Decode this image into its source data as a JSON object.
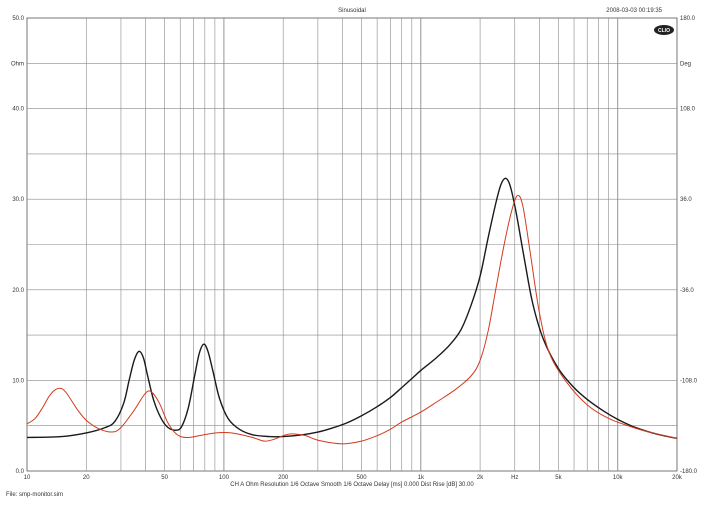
{
  "header": {
    "title": "Sinusoidal",
    "timestamp": "2008-03-03 00:19:35",
    "logo_text": "CLIO"
  },
  "footer": {
    "settings": "CH A   Ohm   Resolution 1/6 Octave   Smooth 1/6 Octave   Delay [ms] 0.000   Dist Rise [dB] 30.00",
    "file": "File: smp-monitor.sim"
  },
  "chart_data": {
    "type": "line",
    "x_scale": "log",
    "xlim": [
      10,
      20000
    ],
    "ylim": [
      0,
      50
    ],
    "y2lim": [
      -180,
      180
    ],
    "ylabel": "Ohm",
    "y2label": "Deg",
    "grid": true,
    "x_ticks": [
      {
        "v": 10,
        "label": "10"
      },
      {
        "v": 20,
        "label": "20"
      },
      {
        "v": 50,
        "label": "50"
      },
      {
        "v": 100,
        "label": "100"
      },
      {
        "v": 200,
        "label": "200"
      },
      {
        "v": 500,
        "label": "500"
      },
      {
        "v": 1000,
        "label": "1k"
      },
      {
        "v": 2000,
        "label": "2k"
      },
      {
        "v": 3000,
        "label": "Hz"
      },
      {
        "v": 5000,
        "label": "5k"
      },
      {
        "v": 10000,
        "label": "10k"
      },
      {
        "v": 20000,
        "label": "20k"
      }
    ],
    "y_ticks": [
      {
        "v": 50,
        "label": "50.0"
      },
      {
        "v": 45,
        "label": "Ohm"
      },
      {
        "v": 40,
        "label": "40.0"
      },
      {
        "v": 30,
        "label": "30.0"
      },
      {
        "v": 20,
        "label": "20.0"
      },
      {
        "v": 10,
        "label": "10.0"
      },
      {
        "v": 0,
        "label": "0.0"
      }
    ],
    "y2_ticks": [
      {
        "v": 50,
        "label": "180.0"
      },
      {
        "v": 45,
        "label": "Deg"
      },
      {
        "v": 40,
        "label": "108.0"
      },
      {
        "v": 30,
        "label": "36.0"
      },
      {
        "v": 20,
        "label": "-36.0"
      },
      {
        "v": 10,
        "label": "-108.0"
      },
      {
        "v": 0,
        "label": "-180.0"
      }
    ],
    "series": [
      {
        "color": "#1a1a1a",
        "points": [
          [
            10,
            3.7
          ],
          [
            15,
            3.8
          ],
          [
            20,
            4.2
          ],
          [
            25,
            4.8
          ],
          [
            28,
            5.5
          ],
          [
            31,
            7.5
          ],
          [
            33,
            10
          ],
          [
            35,
            12.2
          ],
          [
            37,
            13.2
          ],
          [
            39,
            12.5
          ],
          [
            41,
            10.5
          ],
          [
            44,
            7.8
          ],
          [
            48,
            5.8
          ],
          [
            52,
            4.8
          ],
          [
            57,
            4.5
          ],
          [
            61,
            4.9
          ],
          [
            66,
            7.0
          ],
          [
            71,
            10.5
          ],
          [
            75,
            13.0
          ],
          [
            79,
            14.0
          ],
          [
            83,
            13.2
          ],
          [
            88,
            11.0
          ],
          [
            95,
            8.0
          ],
          [
            105,
            5.8
          ],
          [
            120,
            4.6
          ],
          [
            140,
            4.0
          ],
          [
            170,
            3.8
          ],
          [
            200,
            3.8
          ],
          [
            250,
            4.0
          ],
          [
            300,
            4.3
          ],
          [
            350,
            4.7
          ],
          [
            420,
            5.3
          ],
          [
            500,
            6.1
          ],
          [
            600,
            7.1
          ],
          [
            700,
            8.1
          ],
          [
            800,
            9.2
          ],
          [
            900,
            10.2
          ],
          [
            1000,
            11.1
          ],
          [
            1200,
            12.5
          ],
          [
            1400,
            13.9
          ],
          [
            1600,
            15.6
          ],
          [
            1800,
            18.3
          ],
          [
            2000,
            21.5
          ],
          [
            2200,
            25.8
          ],
          [
            2400,
            29.5
          ],
          [
            2550,
            31.6
          ],
          [
            2700,
            32.3
          ],
          [
            2850,
            31.4
          ],
          [
            3050,
            28.5
          ],
          [
            3350,
            23.5
          ],
          [
            3700,
            18.5
          ],
          [
            4200,
            14.5
          ],
          [
            5000,
            11.3
          ],
          [
            6000,
            9.2
          ],
          [
            7000,
            7.9
          ],
          [
            8500,
            6.6
          ],
          [
            10000,
            5.7
          ],
          [
            12000,
            4.9
          ],
          [
            15000,
            4.2
          ],
          [
            18000,
            3.8
          ],
          [
            20000,
            3.6
          ]
        ]
      },
      {
        "color": "#d23a1e",
        "points": [
          [
            10,
            5.2
          ],
          [
            11,
            5.8
          ],
          [
            12,
            7.0
          ],
          [
            13,
            8.3
          ],
          [
            14,
            9.0
          ],
          [
            15,
            9.1
          ],
          [
            16,
            8.5
          ],
          [
            18,
            6.8
          ],
          [
            20,
            5.6
          ],
          [
            23,
            4.7
          ],
          [
            27,
            4.3
          ],
          [
            30,
            4.8
          ],
          [
            35,
            6.7
          ],
          [
            40,
            8.6
          ],
          [
            43,
            8.7
          ],
          [
            47,
            7.5
          ],
          [
            52,
            5.3
          ],
          [
            58,
            4.0
          ],
          [
            65,
            3.7
          ],
          [
            75,
            3.9
          ],
          [
            90,
            4.2
          ],
          [
            110,
            4.2
          ],
          [
            140,
            3.7
          ],
          [
            160,
            3.3
          ],
          [
            180,
            3.5
          ],
          [
            200,
            3.9
          ],
          [
            220,
            4.1
          ],
          [
            260,
            3.9
          ],
          [
            300,
            3.4
          ],
          [
            400,
            3.0
          ],
          [
            500,
            3.3
          ],
          [
            600,
            3.9
          ],
          [
            700,
            4.6
          ],
          [
            800,
            5.4
          ],
          [
            1000,
            6.5
          ],
          [
            1200,
            7.6
          ],
          [
            1500,
            9.0
          ],
          [
            1800,
            10.5
          ],
          [
            2000,
            12.2
          ],
          [
            2200,
            15.5
          ],
          [
            2400,
            20.0
          ],
          [
            2650,
            25.0
          ],
          [
            2900,
            28.8
          ],
          [
            3100,
            30.4
          ],
          [
            3300,
            29.2
          ],
          [
            3600,
            24.0
          ],
          [
            4000,
            17.5
          ],
          [
            4500,
            13.0
          ],
          [
            5500,
            9.8
          ],
          [
            7000,
            7.3
          ],
          [
            9000,
            5.8
          ],
          [
            12000,
            4.8
          ],
          [
            15000,
            4.2
          ],
          [
            20000,
            3.6
          ]
        ]
      }
    ]
  }
}
